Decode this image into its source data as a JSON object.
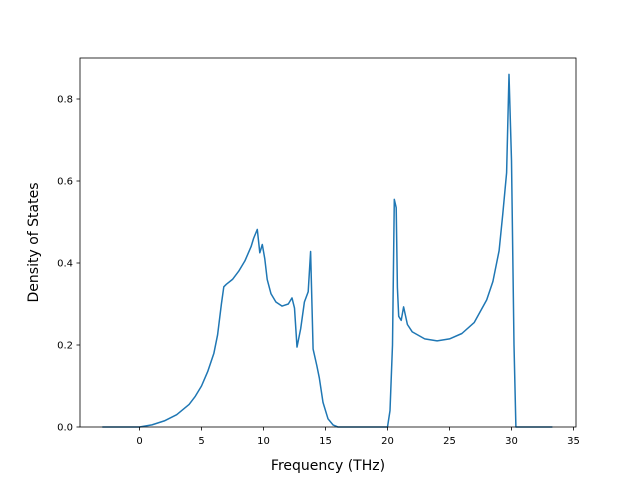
{
  "chart_data": {
    "type": "line",
    "title": "",
    "xlabel": "Frequency (THz)",
    "ylabel": "Density of States",
    "xlim": [
      -4.8,
      35.2
    ],
    "ylim": [
      0,
      0.9
    ],
    "xticks": [
      0,
      5,
      10,
      15,
      20,
      25,
      30,
      35
    ],
    "xtick_labels": [
      "0",
      "5",
      "10",
      "15",
      "20",
      "25",
      "30",
      "35"
    ],
    "yticks": [
      0.0,
      0.2,
      0.4,
      0.6,
      0.8
    ],
    "ytick_labels": [
      "0.0",
      "0.2",
      "0.4",
      "0.6",
      "0.8"
    ],
    "grid": false,
    "legend": "none",
    "colors": {
      "line": "#1f77b4"
    },
    "series": [
      {
        "x": [
          -3.0,
          -1.0,
          0.0,
          1.0,
          2.0,
          3.0,
          4.0,
          4.5,
          5.0,
          5.5,
          6.0,
          6.3,
          6.6,
          6.8,
          7.0,
          7.5,
          8.0,
          8.5,
          9.0,
          9.2,
          9.5,
          9.7,
          9.9,
          10.1,
          10.3,
          10.6,
          11.0,
          11.5,
          12.0,
          12.3,
          12.5,
          12.7,
          13.0,
          13.3,
          13.6,
          13.8,
          14.0,
          14.3,
          14.5,
          14.8,
          15.2,
          15.6,
          16.0,
          17.0,
          18.0,
          19.0,
          20.0,
          20.2,
          20.4,
          20.55,
          20.7,
          20.8,
          20.9,
          21.1,
          21.3,
          21.6,
          22.0,
          23.0,
          24.0,
          25.0,
          26.0,
          27.0,
          28.0,
          28.5,
          29.0,
          29.3,
          29.6,
          29.8,
          30.0,
          30.2,
          30.35,
          30.5,
          31.0,
          32.0,
          33.3
        ],
        "y": [
          0.0,
          0.0,
          0.0,
          0.005,
          0.015,
          0.03,
          0.055,
          0.075,
          0.1,
          0.135,
          0.18,
          0.225,
          0.3,
          0.342,
          0.348,
          0.36,
          0.38,
          0.405,
          0.44,
          0.46,
          0.482,
          0.425,
          0.445,
          0.41,
          0.36,
          0.325,
          0.305,
          0.295,
          0.3,
          0.315,
          0.29,
          0.195,
          0.24,
          0.305,
          0.33,
          0.428,
          0.19,
          0.15,
          0.12,
          0.06,
          0.02,
          0.005,
          0.0,
          0.0,
          0.0,
          0.0,
          0.0,
          0.04,
          0.2,
          0.555,
          0.535,
          0.34,
          0.27,
          0.26,
          0.293,
          0.25,
          0.232,
          0.215,
          0.21,
          0.215,
          0.228,
          0.255,
          0.31,
          0.355,
          0.43,
          0.52,
          0.62,
          0.86,
          0.65,
          0.2,
          0.0,
          0.0,
          0.0,
          0.0,
          0.0
        ]
      }
    ]
  }
}
